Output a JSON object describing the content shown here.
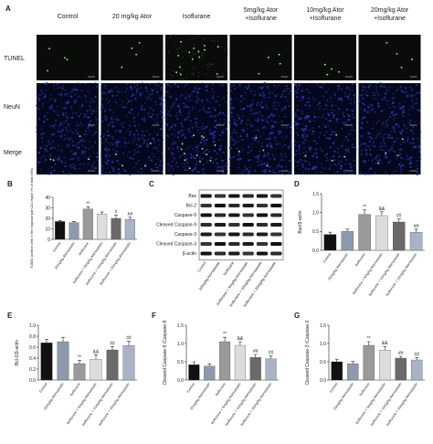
{
  "panel_a": {
    "label": "A",
    "columns": [
      [
        "Control"
      ],
      [
        "20 mg/kg Ator"
      ],
      [
        "Isoflurane"
      ],
      [
        "5mg/kg Ator",
        "+Isoflurane"
      ],
      [
        "10mg/kg Ator",
        "+Isoflurane"
      ],
      [
        "20mg/kg Ator",
        "+Isoflurane"
      ]
    ],
    "rows": [
      "TUNEL",
      "NeuN",
      "Merge"
    ]
  },
  "panel_c": {
    "label": "C",
    "proteins": [
      "Bax",
      "Bcl-2",
      "Caspase-9",
      "Cleaved Caspase-9",
      "Caspase-3",
      "Cleaved Caspase-3",
      "β-actin"
    ],
    "lanes": [
      "Control",
      "20mg/kg Atorvastatin",
      "Isoflurane",
      "Isoflurane + 5mg/kg Atorvastatin",
      "Isoflurane + 10mg/kg Atorvastatin",
      "Isoflurane + 20mg/kg Atorvastatin"
    ]
  },
  "chart_data": [
    {
      "type": "bar",
      "label": "B",
      "ylabel": "TUNEL positive cells in the hippocampal CA1 region (% of total cells)",
      "categories": [
        "Control",
        "20mg/kg Atorvastatin",
        "Isoflurane",
        "Isoflurane + 5mg/kg Atorvastatin",
        "Isoflurane + 10mg/kg Atorvastatin",
        "Isoflurane + 20mg/kg Atorvastatin"
      ],
      "values": [
        17,
        16,
        29,
        24,
        20,
        19
      ],
      "errors": [
        1,
        1,
        2,
        2,
        3,
        2
      ],
      "annotations": [
        null,
        null,
        "**",
        null,
        "#",
        "##"
      ],
      "colors": [
        "#111111",
        "#8d9aae",
        "#9a9a9a",
        "#dcdcdc",
        "#6a6a6a",
        "#a9b3c6"
      ],
      "ylim": [
        0,
        40
      ],
      "yticks": [
        0,
        10,
        20,
        30,
        40
      ]
    },
    {
      "type": "bar",
      "label": "D",
      "ylabel": "Bax/β-actin",
      "categories": [
        "Control",
        "20mg/kg Atorvastatin",
        "Isoflurane",
        "Isoflurane + 5mg/kg Atorvastatin",
        "Isoflurane + 10mg/kg Atorvastatin",
        "Isoflurane + 20mg/kg Atorvastatin"
      ],
      "values": [
        0.42,
        0.5,
        0.95,
        0.92,
        0.75,
        0.48
      ],
      "errors": [
        0.06,
        0.06,
        0.12,
        0.1,
        0.08,
        0.08
      ],
      "annotations": [
        null,
        null,
        "**",
        "&&",
        "##",
        "##"
      ],
      "colors": [
        "#111111",
        "#8d9aae",
        "#9a9a9a",
        "#dcdcdc",
        "#6a6a6a",
        "#a9b3c6"
      ],
      "ylim": [
        0,
        1.5
      ],
      "yticks": [
        {
          "value": 0,
          "label": "0.0"
        },
        0.5,
        {
          "value": 1,
          "label": "1.0"
        },
        1.5
      ]
    },
    {
      "type": "bar",
      "label": "E",
      "ylabel": "Bcl-2/β-actin",
      "categories": [
        "Control",
        "20mg/kg Atorvastatin",
        "Isoflurane",
        "Isoflurane + 5mg/kg Atorvastatin",
        "Isoflurane + 10mg/kg Atorvastatin",
        "Isoflurane + 20mg/kg Atorvastatin"
      ],
      "values": [
        0.68,
        0.7,
        0.3,
        0.38,
        0.55,
        0.63
      ],
      "errors": [
        0.06,
        0.08,
        0.06,
        0.08,
        0.06,
        0.08
      ],
      "annotations": [
        null,
        null,
        "**",
        "&&",
        "##",
        "##"
      ],
      "colors": [
        "#111111",
        "#8d9aae",
        "#9a9a9a",
        "#dcdcdc",
        "#6a6a6a",
        "#a9b3c6"
      ],
      "ylim": [
        0,
        1
      ],
      "yticks": [
        {
          "value": 0,
          "label": "0.0"
        },
        0.2,
        0.4,
        0.6,
        0.8,
        {
          "value": 1,
          "label": "1.0"
        }
      ]
    },
    {
      "type": "bar",
      "label": "F",
      "ylabel": "Cleaved Caspase-9 /Caspase-9",
      "categories": [
        "Control",
        "20mg/kg Atorvastatin",
        "Isoflurane",
        "Isoflurane + 5mg/kg Atorvastatin",
        "Isoflurane + 10mg/kg Atorvastatin",
        "Isoflurane + 20mg/kg Atorvastatin"
      ],
      "values": [
        0.42,
        0.38,
        1.05,
        0.95,
        0.62,
        0.58
      ],
      "errors": [
        0.08,
        0.06,
        0.12,
        0.1,
        0.08,
        0.08
      ],
      "annotations": [
        null,
        null,
        "**",
        "&&",
        "##",
        "##"
      ],
      "colors": [
        "#111111",
        "#8d9aae",
        "#9a9a9a",
        "#dcdcdc",
        "#6a6a6a",
        "#a9b3c6"
      ],
      "ylim": [
        0,
        1.5
      ],
      "yticks": [
        {
          "value": 0,
          "label": "0.0"
        },
        0.5,
        {
          "value": 1,
          "label": "1.0"
        },
        1.5
      ]
    },
    {
      "type": "bar",
      "label": "G",
      "ylabel": "Cleaved Caspase-3 /Caspase-3",
      "categories": [
        "Control",
        "20mg/kg Atorvastatin",
        "Isoflurane",
        "Isoflurane + 5mg/kg Atorvastatin",
        "Isoflurane + 10mg/kg Atorvastatin",
        "Isoflurane + 20mg/kg Atorvastatin"
      ],
      "values": [
        0.5,
        0.45,
        0.95,
        0.82,
        0.6,
        0.55
      ],
      "errors": [
        0.07,
        0.06,
        0.1,
        0.1,
        0.05,
        0.06
      ],
      "annotations": [
        null,
        null,
        "**",
        "&&",
        "##",
        "##"
      ],
      "colors": [
        "#111111",
        "#8d9aae",
        "#9a9a9a",
        "#dcdcdc",
        "#6a6a6a",
        "#a9b3c6"
      ],
      "ylim": [
        0,
        1.5
      ],
      "yticks": [
        {
          "value": 0,
          "label": "0.0"
        },
        0.5,
        {
          "value": 1,
          "label": "1.0"
        },
        1.5
      ]
    }
  ]
}
